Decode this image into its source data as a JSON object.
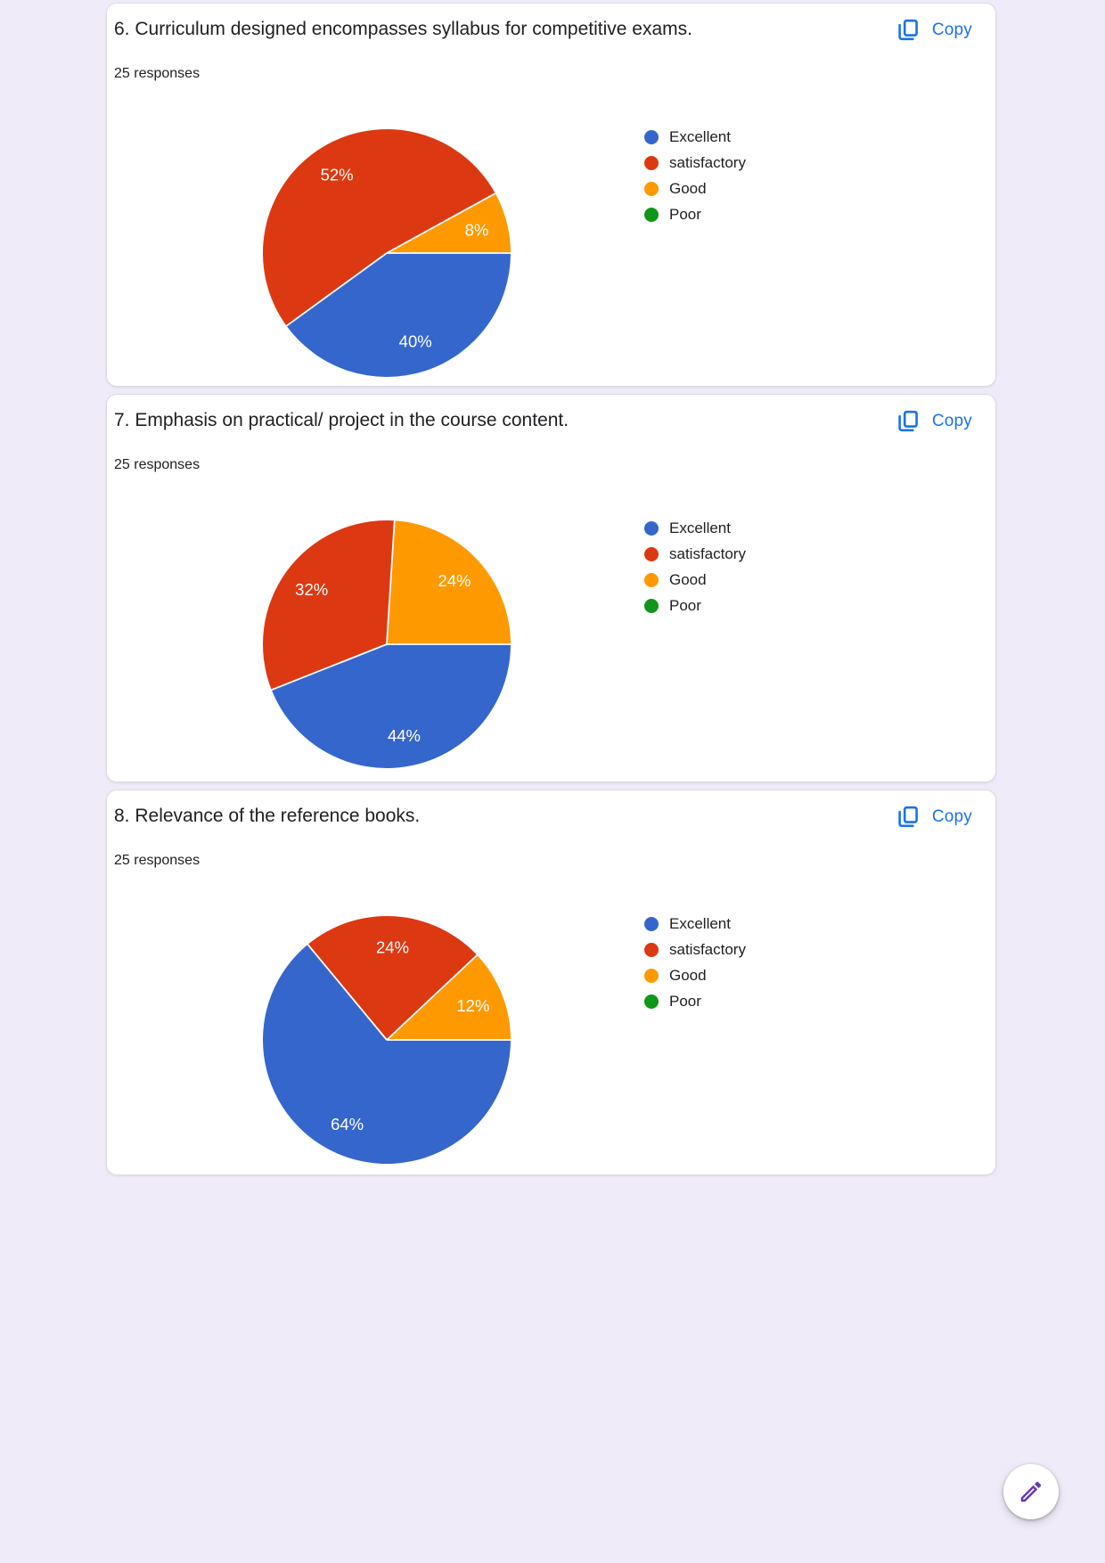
{
  "page": {
    "background_color": "#f0ebf8",
    "copy_button_color": "#1a73e8",
    "card_border_color": "#dadce0",
    "pie_label_text_color": "#ffffff"
  },
  "chart_data": [
    {
      "type": "pie",
      "title": "6. Curriculum designed encompasses syllabus for competitive exams.",
      "responses_count": "25 responses",
      "copy_label": "Copy",
      "categories": [
        "Excellent",
        "satisfactory",
        "Good",
        "Poor"
      ],
      "values_percent": [
        40,
        52,
        8,
        0
      ],
      "colors": [
        "#3566cc",
        "#dc3912",
        "#ff9900",
        "#109618"
      ],
      "legend_position": "right",
      "slice_order": "clockwise-from-3-oclock",
      "data_label_suffix": "%"
    },
    {
      "type": "pie",
      "title": "7. Emphasis on practical/ project in the course content.",
      "responses_count": "25 responses",
      "copy_label": "Copy",
      "categories": [
        "Excellent",
        "satisfactory",
        "Good",
        "Poor"
      ],
      "values_percent": [
        44,
        32,
        24,
        0
      ],
      "colors": [
        "#3566cc",
        "#dc3912",
        "#ff9900",
        "#109618"
      ],
      "legend_position": "right",
      "slice_order": "clockwise-from-3-oclock",
      "data_label_suffix": "%"
    },
    {
      "type": "pie",
      "title": "8. Relevance of the reference books.",
      "responses_count": "25 responses",
      "copy_label": "Copy",
      "categories": [
        "Excellent",
        "satisfactory",
        "Good",
        "Poor"
      ],
      "values_percent": [
        64,
        24,
        12,
        0
      ],
      "colors": [
        "#3566cc",
        "#dc3912",
        "#ff9900",
        "#109618"
      ],
      "legend_position": "right",
      "slice_order": "clockwise-from-3-oclock",
      "data_label_suffix": "%"
    }
  ],
  "fab": {
    "icon": "pencil-icon",
    "icon_color": "#673ab7",
    "background": "#ffffff"
  }
}
